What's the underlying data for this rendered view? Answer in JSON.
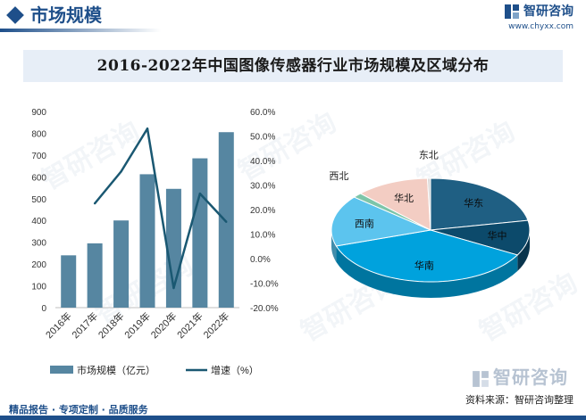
{
  "header": {
    "section_title": "市场规模",
    "brand_name": "智研咨询",
    "brand_url": "www.chyxx.com"
  },
  "watermark_text": "智研咨询",
  "chart_title": "2016-2022年中国图像传感器行业市场规模及区域分布",
  "footer": {
    "logo_text": "智研咨询",
    "source": "资料来源：智研咨询整理",
    "tagline": "精品报告 · 专项定制 · 品质服务"
  },
  "colors": {
    "brand": "#1e4f8a",
    "bar": "#5686a1",
    "line": "#1a5872",
    "title_bg": "#e7eef7"
  },
  "chart_data": [
    {
      "type": "bar",
      "categories": [
        "2016年",
        "2017年",
        "2018年",
        "2019年",
        "2020年",
        "2021年",
        "2022年"
      ],
      "series": [
        {
          "name": "市场规模（亿元）",
          "type": "bar",
          "axis": "left",
          "values": [
            240,
            295,
            400,
            612,
            545,
            685,
            805
          ]
        },
        {
          "name": "增速（%）",
          "type": "line",
          "axis": "right",
          "values": [
            null,
            22.5,
            35.5,
            53.0,
            -12.0,
            26.5,
            15.0
          ]
        }
      ],
      "y_left": {
        "ticks": [
          "0",
          "100",
          "200",
          "300",
          "400",
          "500",
          "600",
          "700",
          "800",
          "900"
        ],
        "range": [
          0,
          900
        ]
      },
      "y_right": {
        "ticks": [
          "-20.0%",
          "-10.0%",
          "0.0%",
          "10.0%",
          "20.0%",
          "30.0%",
          "40.0%",
          "50.0%",
          "60.0%"
        ],
        "range": [
          -20,
          60
        ]
      },
      "legend_position": "bottom",
      "grid": false
    },
    {
      "type": "pie",
      "style": "3d",
      "slices": [
        {
          "label": "华东",
          "value": 22,
          "color": "#1f5f83"
        },
        {
          "label": "华中",
          "value": 11,
          "color": "#0c4a6b"
        },
        {
          "label": "华南",
          "value": 37,
          "color": "#00a2dd"
        },
        {
          "label": "西南",
          "value": 16,
          "color": "#5cc4ee"
        },
        {
          "label": "西北",
          "value": 1.5,
          "color": "#7dc5a9"
        },
        {
          "label": "华北",
          "value": 12,
          "color": "#f3cdc3"
        },
        {
          "label": "东北",
          "value": 0.5,
          "color": "#d8d8d8"
        }
      ]
    }
  ]
}
